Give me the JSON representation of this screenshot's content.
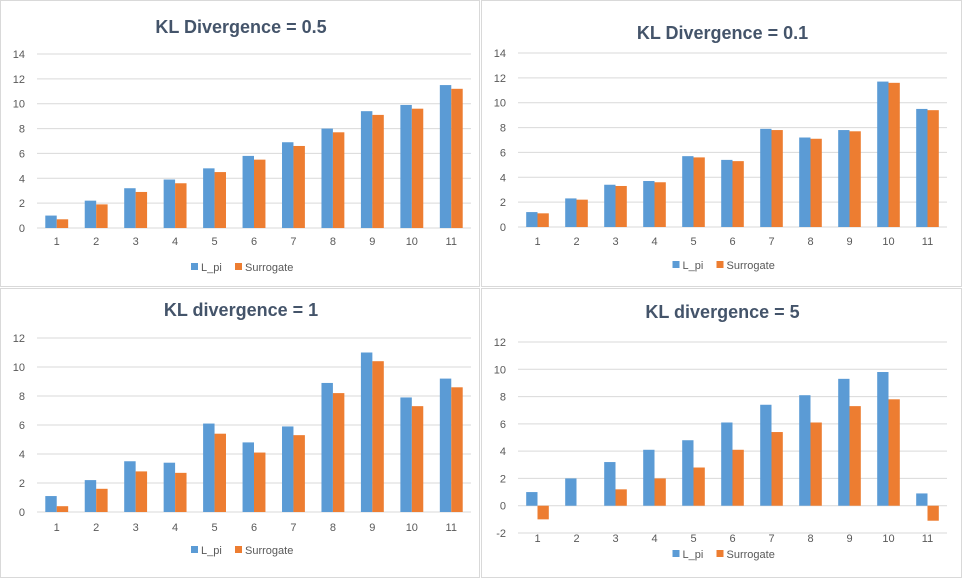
{
  "chart_data": [
    {
      "type": "bar",
      "title": "KL Divergence = 0.5",
      "categories": [
        "1",
        "2",
        "3",
        "4",
        "5",
        "6",
        "7",
        "8",
        "9",
        "10",
        "11"
      ],
      "series": [
        {
          "name": "L_pi",
          "values": [
            1.0,
            2.2,
            3.2,
            3.9,
            4.8,
            5.8,
            6.9,
            8.0,
            9.4,
            9.9,
            11.5
          ]
        },
        {
          "name": "Surrogate",
          "values": [
            0.7,
            1.9,
            2.9,
            3.6,
            4.5,
            5.5,
            6.6,
            7.7,
            9.1,
            9.6,
            11.2
          ]
        }
      ],
      "ylim": [
        0,
        14
      ],
      "yticks": [
        "0",
        "2",
        "4",
        "6",
        "8",
        "10",
        "12",
        "14"
      ],
      "grid": true,
      "legend": "bottom"
    },
    {
      "type": "bar",
      "title": "KL Divergence = 0.1",
      "categories": [
        "1",
        "2",
        "3",
        "4",
        "5",
        "6",
        "7",
        "8",
        "9",
        "10",
        "11"
      ],
      "series": [
        {
          "name": "L_pi",
          "values": [
            1.2,
            2.3,
            3.4,
            3.7,
            5.7,
            5.4,
            7.9,
            7.2,
            7.8,
            11.7,
            9.5
          ]
        },
        {
          "name": "Surrogate",
          "values": [
            1.1,
            2.2,
            3.3,
            3.6,
            5.6,
            5.3,
            7.8,
            7.1,
            7.7,
            11.6,
            9.4
          ]
        }
      ],
      "ylim": [
        0,
        14
      ],
      "yticks": [
        "0",
        "2",
        "4",
        "6",
        "8",
        "10",
        "12",
        "14"
      ],
      "grid": true,
      "legend": "bottom"
    },
    {
      "type": "bar",
      "title": "KL divergence = 1",
      "categories": [
        "1",
        "2",
        "3",
        "4",
        "5",
        "6",
        "7",
        "8",
        "9",
        "10",
        "11"
      ],
      "series": [
        {
          "name": "L_pi",
          "values": [
            1.1,
            2.2,
            3.5,
            3.4,
            6.1,
            4.8,
            5.9,
            8.9,
            11.0,
            7.9,
            9.2
          ]
        },
        {
          "name": "Surrogate",
          "values": [
            0.4,
            1.6,
            2.8,
            2.7,
            5.4,
            4.1,
            5.3,
            8.2,
            10.4,
            7.3,
            8.6
          ]
        }
      ],
      "ylim": [
        0,
        12
      ],
      "yticks": [
        "0",
        "2",
        "4",
        "6",
        "8",
        "10",
        "12"
      ],
      "grid": true,
      "legend": "bottom"
    },
    {
      "type": "bar",
      "title": "KL divergence = 5",
      "categories": [
        "1",
        "2",
        "3",
        "4",
        "5",
        "6",
        "7",
        "8",
        "9",
        "10",
        "11"
      ],
      "series": [
        {
          "name": "L_pi",
          "values": [
            1.0,
            2.0,
            3.2,
            4.1,
            4.8,
            6.1,
            7.4,
            8.1,
            9.3,
            9.8,
            0.9
          ]
        },
        {
          "name": "Surrogate",
          "values": [
            -1.0,
            0.0,
            1.2,
            2.0,
            2.8,
            4.1,
            5.4,
            6.1,
            7.3,
            7.8,
            -1.1
          ]
        }
      ],
      "ylim": [
        -2,
        12
      ],
      "yticks": [
        "-2",
        "0",
        "2",
        "4",
        "6",
        "8",
        "10",
        "12"
      ],
      "grid": true,
      "legend": "bottom"
    }
  ],
  "colors": {
    "L_pi": "#5b9bd5",
    "Surrogate": "#ed7d31",
    "grid": "#d9d9d9",
    "text": "#595959",
    "title": "#44546a"
  }
}
